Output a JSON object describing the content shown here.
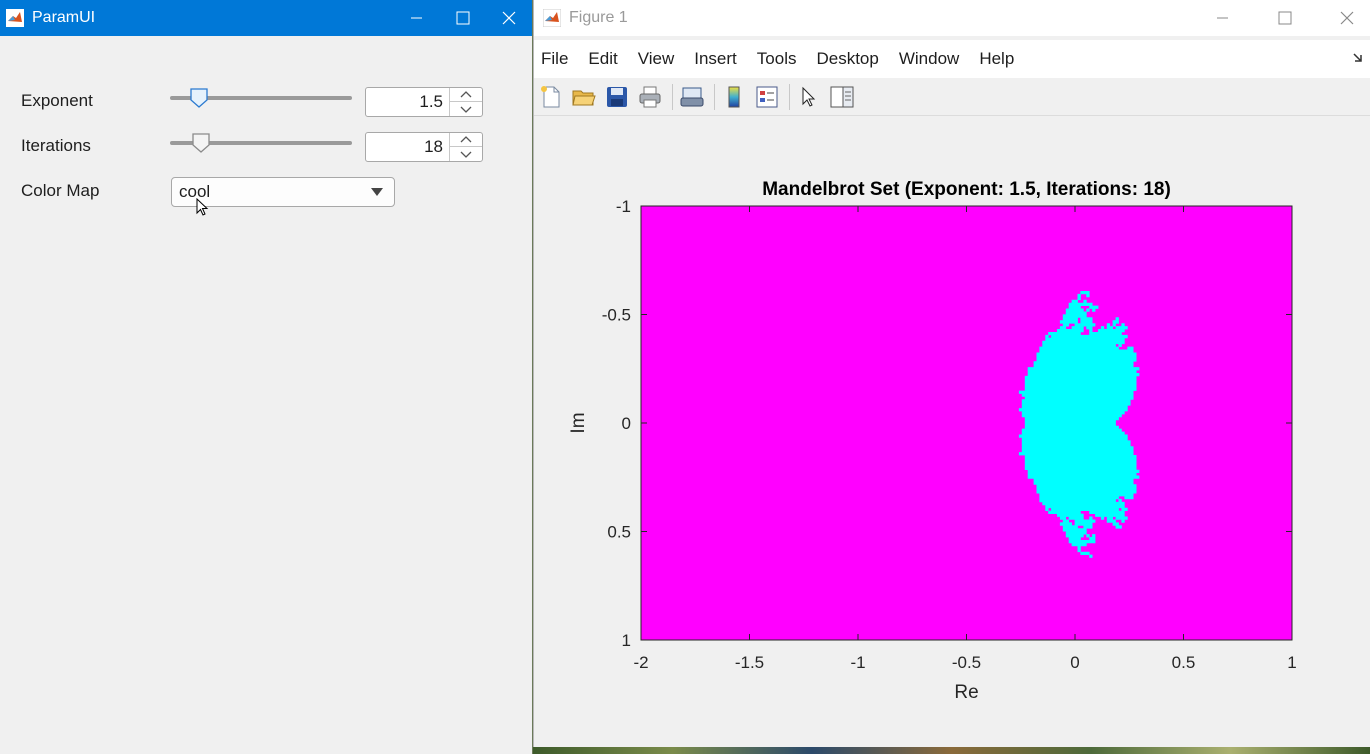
{
  "param_window": {
    "title": "ParamUI",
    "exponent": {
      "label": "Exponent",
      "value": "1.5",
      "slider_fraction": 0.16
    },
    "iterations": {
      "label": "Iterations",
      "value": "18",
      "slider_fraction": 0.17
    },
    "colormap": {
      "label": "Color Map",
      "value": "cool"
    }
  },
  "figure_window": {
    "title": "Figure 1",
    "menu": [
      "File",
      "Edit",
      "View",
      "Insert",
      "Tools",
      "Desktop",
      "Window",
      "Help"
    ],
    "toolbar_icons": [
      "new-file-icon",
      "open-folder-icon",
      "save-icon",
      "print-icon",
      "print-preview-icon",
      "colorbar-icon",
      "legend-icon",
      "pointer-icon",
      "plot-browser-icon"
    ]
  },
  "chart_data": {
    "type": "heatmap",
    "title": "Mandelbrot Set (Exponent: 1.5, Iterations: 18)",
    "xlabel": "Re",
    "ylabel": "Im",
    "xlim": [
      -2,
      1
    ],
    "ylim": [
      -1,
      1
    ],
    "y_reversed": true,
    "x_ticks": [
      "-2",
      "-1.5",
      "-1",
      "-0.5",
      "0",
      "0.5",
      "1"
    ],
    "y_ticks": [
      "-1",
      "-0.5",
      "0",
      "0.5",
      "1"
    ],
    "colormap": "cool",
    "exponent": 1.5,
    "iterations": 18,
    "escaped_color": "#ff00ff",
    "interior_color": "#00ffff"
  }
}
